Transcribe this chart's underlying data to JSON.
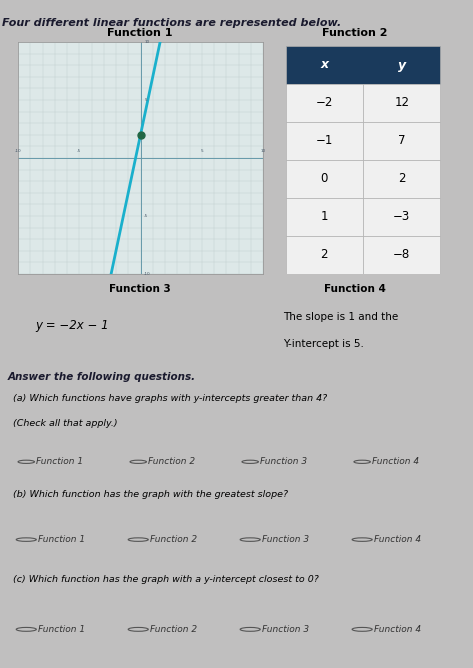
{
  "title": "Four different linear functions are represented below.",
  "bg_color": "#c0bfbf",
  "panel_bg": "#d0cfcf",
  "inner_panel_bg": "#d8d7d7",
  "graph_bg": "#dde8e8",
  "graph_grid_color": "#b8c8c8",
  "line_color": "#1ab0cc",
  "func1_title": "Function 1",
  "func2_title": "Function 2",
  "func3_title": "Function 3",
  "func4_title": "Function 4",
  "func3_eq": "y = −2x − 1",
  "func4_desc_line1": "The slope is 1 and the",
  "func4_desc_line2": "Y-intercept is 5.",
  "table_header_bg": "#1a3a5c",
  "table_header_color": "#ffffff",
  "table_x_vals": [
    "−2",
    "−1",
    "0",
    "1",
    "2"
  ],
  "table_y_vals": [
    "12",
    "7",
    "2",
    "−3",
    "−8"
  ],
  "question_text": "Answer the following questions.",
  "qa_title": "(a) Which functions have graphs with y-intercepts greater than 4?",
  "qa_note": "(Check all that apply.)",
  "qa_options": [
    "Function 1",
    "Function 2",
    "Function 3",
    "Function 4"
  ],
  "qb_title": "(b) Which function has the graph with the greatest slope?",
  "qb_options": [
    "Function 1",
    "Function 2",
    "Function 3",
    "Function 4"
  ],
  "qc_title": "(c) Which function has the graph with a y-intercept closest to 0?",
  "qc_options": [
    "Function 1",
    "Function 2",
    "Function 3",
    "Function 4"
  ],
  "func1_slope": 5,
  "func1_intercept": 2,
  "box_border_color": "#888888",
  "question_box_bg": "#c8c7c7"
}
